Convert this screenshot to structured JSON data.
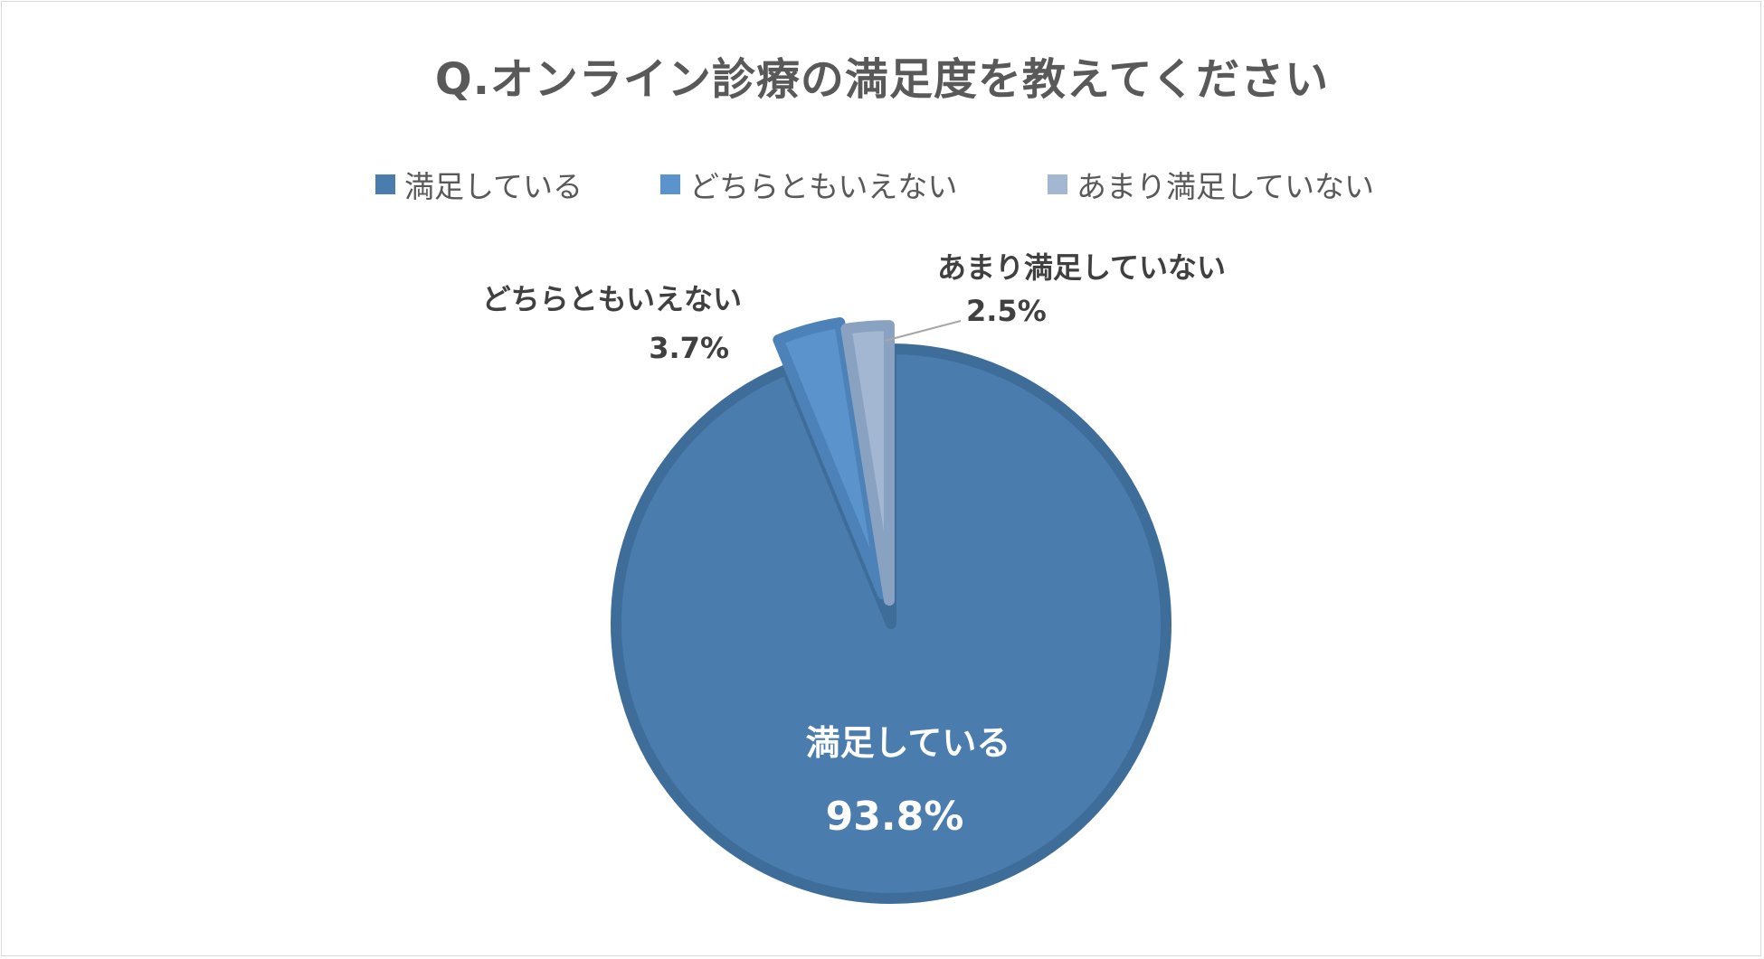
{
  "title": "Q.オンライン診療の満足度を教えてください",
  "colors": {
    "satisfied": "#4a7cae",
    "satisfied_edge": "#3f6d9a",
    "neutral": "#5b93cc",
    "neutral_edge": "#4d82b8",
    "unsatisfied": "#a3b7d3",
    "unsatisfied_edge": "#8aa2c2",
    "text": "#595959",
    "label_dark": "#404040",
    "label_light": "#ffffff"
  },
  "chart_data": {
    "type": "pie",
    "title": "Q.オンライン診療の満足度を教えてください",
    "legend_position": "top",
    "slices": [
      {
        "name": "満足している",
        "value": 93.8,
        "label": "93.8%"
      },
      {
        "name": "どちらともいえない",
        "value": 3.7,
        "label": "3.7%"
      },
      {
        "name": "あまり満足していない",
        "value": 2.5,
        "label": "2.5%"
      }
    ]
  }
}
